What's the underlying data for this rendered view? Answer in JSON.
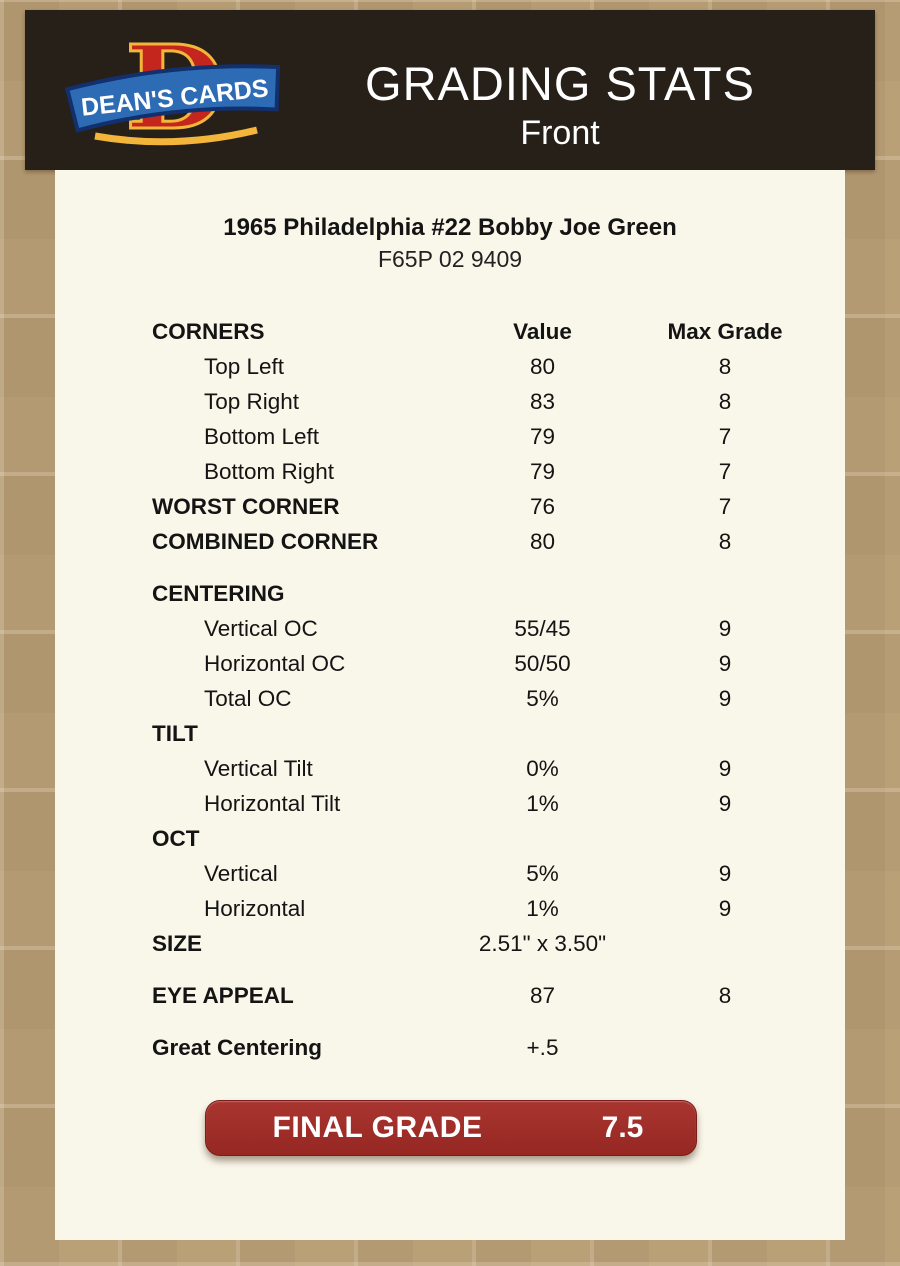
{
  "colors": {
    "page_bg": "#c2a980",
    "header_bg": "#262019",
    "panel_bg": "#f9f6ea",
    "final_grade_red": "#9e2b27",
    "logo_red": "#c4261d",
    "logo_gold": "#f3b53a",
    "logo_blue": "#2d6cb5",
    "logo_navy": "#12306e"
  },
  "header": {
    "title": "GRADING STATS",
    "subtitle": "Front",
    "logo_text": "DEAN'S CARDS",
    "logo_letter": "D"
  },
  "card": {
    "title": "1965 Philadelphia #22 Bobby Joe Green",
    "code": "F65P 02 9409"
  },
  "table": {
    "rows": [
      {
        "label": "CORNERS",
        "value": "Value",
        "max": "Max Grade",
        "style": "colheader",
        "gap": false
      },
      {
        "label": "Top Left",
        "value": "80",
        "max": "8",
        "style": "item",
        "gap": false
      },
      {
        "label": "Top Right",
        "value": "83",
        "max": "8",
        "style": "item",
        "gap": false
      },
      {
        "label": "Bottom Left",
        "value": "79",
        "max": "7",
        "style": "item",
        "gap": false
      },
      {
        "label": "Bottom Right",
        "value": "79",
        "max": "7",
        "style": "item",
        "gap": false
      },
      {
        "label": "WORST CORNER",
        "value": "76",
        "max": "7",
        "style": "section",
        "gap": false
      },
      {
        "label": "COMBINED CORNER",
        "value": "80",
        "max": "8",
        "style": "section",
        "gap": false
      },
      {
        "label": "CENTERING",
        "value": "",
        "max": "",
        "style": "section",
        "gap": true
      },
      {
        "label": "Vertical OC",
        "value": "55/45",
        "max": "9",
        "style": "item",
        "gap": false
      },
      {
        "label": "Horizontal OC",
        "value": "50/50",
        "max": "9",
        "style": "item",
        "gap": false
      },
      {
        "label": "Total OC",
        "value": "5%",
        "max": "9",
        "style": "item",
        "gap": false
      },
      {
        "label": "TILT",
        "value": "",
        "max": "",
        "style": "section",
        "gap": false
      },
      {
        "label": "Vertical Tilt",
        "value": "0%",
        "max": "9",
        "style": "item",
        "gap": false
      },
      {
        "label": "Horizontal Tilt",
        "value": "1%",
        "max": "9",
        "style": "item",
        "gap": false
      },
      {
        "label": "OCT",
        "value": "",
        "max": "",
        "style": "section",
        "gap": false
      },
      {
        "label": "Vertical",
        "value": "5%",
        "max": "9",
        "style": "item",
        "gap": false
      },
      {
        "label": "Horizontal",
        "value": "1%",
        "max": "9",
        "style": "item",
        "gap": false
      },
      {
        "label": "SIZE",
        "value": "2.51\" x 3.50\"",
        "max": "",
        "style": "section",
        "gap": false
      },
      {
        "label": "EYE APPEAL",
        "value": "87",
        "max": "8",
        "style": "section",
        "gap": true
      },
      {
        "label": "Great Centering",
        "value": "+.5",
        "max": "",
        "style": "section",
        "gap": true
      }
    ]
  },
  "final_grade": {
    "label": "FINAL GRADE",
    "value": "7.5"
  }
}
